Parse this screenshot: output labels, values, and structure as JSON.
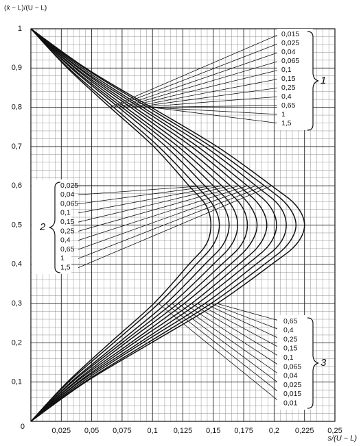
{
  "chart_data": {
    "type": "line",
    "y_axis_label": "(x̄ − L)/(U − L)",
    "x_axis_label": "s/(U − L)",
    "xlim": [
      0,
      0.25
    ],
    "ylim": [
      0,
      1
    ],
    "xticks": [
      0,
      {
        "value": 0.025,
        "label": "0,025"
      },
      {
        "value": 0.05,
        "label": "0,05"
      },
      {
        "value": 0.075,
        "label": "0,075"
      },
      {
        "value": 0.1,
        "label": "0,1"
      },
      {
        "value": 0.125,
        "label": "0,125"
      },
      {
        "value": 0.15,
        "label": "0,15"
      },
      {
        "value": 0.175,
        "label": "0,175"
      },
      {
        "value": 0.2,
        "label": "0,2"
      },
      {
        "value": 0.225,
        "label": "0,225"
      },
      {
        "value": 0.25,
        "label": "0,25"
      }
    ],
    "yticks": [
      0,
      {
        "value": 0.1,
        "label": "0,1"
      },
      {
        "value": 0.2,
        "label": "0,2"
      },
      {
        "value": 0.3,
        "label": "0,3"
      },
      {
        "value": 0.4,
        "label": "0,4"
      },
      {
        "value": 0.5,
        "label": "0,5"
      },
      {
        "value": 0.6,
        "label": "0,6"
      },
      {
        "value": 0.7,
        "label": "0,7"
      },
      {
        "value": 0.8,
        "label": "0,8"
      },
      {
        "value": 0.9,
        "label": "0,9"
      },
      1
    ],
    "grid": true,
    "color": "#111111",
    "y": [
      1,
      0.9,
      0.8,
      0.7,
      0.6,
      0.55,
      0.5,
      0.45,
      0.4,
      0.3,
      0.2,
      0.1,
      0
    ],
    "series": [
      {
        "name": "0,015",
        "x": [
          0,
          0.03,
          0.065,
          0.101,
          0.13,
          0.144,
          0.148,
          0.144,
          0.13,
          0.101,
          0.065,
          0.03,
          0
        ]
      },
      {
        "name": "0,025",
        "x": [
          0,
          0.031,
          0.068,
          0.105,
          0.136,
          0.15,
          0.155,
          0.15,
          0.136,
          0.105,
          0.068,
          0.031,
          0
        ]
      },
      {
        "name": "0,04",
        "x": [
          0,
          0.033,
          0.072,
          0.111,
          0.143,
          0.158,
          0.163,
          0.158,
          0.143,
          0.111,
          0.072,
          0.033,
          0
        ]
      },
      {
        "name": "0,065",
        "x": [
          0,
          0.034,
          0.075,
          0.116,
          0.15,
          0.165,
          0.17,
          0.165,
          0.15,
          0.116,
          0.075,
          0.034,
          0
        ]
      },
      {
        "name": "0,1",
        "x": [
          0,
          0.036,
          0.078,
          0.121,
          0.157,
          0.173,
          0.178,
          0.173,
          0.157,
          0.121,
          0.078,
          0.036,
          0
        ]
      },
      {
        "name": "0,15",
        "x": [
          0,
          0.037,
          0.082,
          0.126,
          0.164,
          0.18,
          0.186,
          0.18,
          0.164,
          0.126,
          0.082,
          0.037,
          0
        ]
      },
      {
        "name": "0,25",
        "x": [
          0,
          0.039,
          0.085,
          0.132,
          0.171,
          0.188,
          0.194,
          0.188,
          0.171,
          0.132,
          0.085,
          0.039,
          0
        ]
      },
      {
        "name": "0,4",
        "x": [
          0,
          0.04,
          0.089,
          0.137,
          0.178,
          0.196,
          0.202,
          0.196,
          0.178,
          0.137,
          0.089,
          0.04,
          0
        ]
      },
      {
        "name": "0,65",
        "x": [
          0,
          0.042,
          0.092,
          0.143,
          0.185,
          0.204,
          0.21,
          0.204,
          0.185,
          0.143,
          0.092,
          0.042,
          0
        ]
      },
      {
        "name": "1",
        "x": [
          0,
          0.044,
          0.096,
          0.148,
          0.192,
          0.211,
          0.218,
          0.211,
          0.192,
          0.148,
          0.096,
          0.044,
          0
        ]
      },
      {
        "name": "1,5",
        "x": [
          0,
          0.045,
          0.099,
          0.153,
          0.198,
          0.218,
          0.225,
          0.218,
          0.198,
          0.153,
          0.099,
          0.045,
          0
        ]
      }
    ],
    "label_groups": [
      {
        "marker": "1",
        "labels": [
          "0,015",
          "0,025",
          "0,04",
          "0,065",
          "0,1",
          "0,15",
          "0,25",
          "0,4",
          "0,65",
          "1",
          "1,5"
        ]
      },
      {
        "marker": "2",
        "labels": [
          "0,025",
          "0,04",
          "0,065",
          "0,1",
          "0,15",
          "0,25",
          "0,4",
          "0,65",
          "1",
          "1,5"
        ]
      },
      {
        "marker": "3",
        "labels": [
          "0,65",
          "0,4",
          "0,25",
          "0,15",
          "0,1",
          "0,065",
          "0,04",
          "0,025",
          "0,015",
          "0,01"
        ]
      }
    ]
  }
}
